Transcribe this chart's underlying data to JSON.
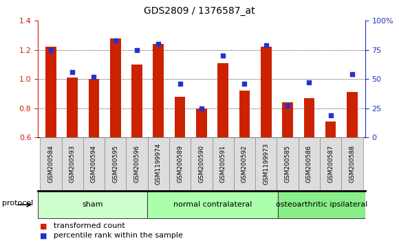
{
  "title": "GDS2809 / 1376587_at",
  "categories": [
    "GSM200584",
    "GSM200593",
    "GSM200594",
    "GSM200595",
    "GSM200596",
    "GSM1199974",
    "GSM200589",
    "GSM200590",
    "GSM200591",
    "GSM200592",
    "GSM1199973",
    "GSM200585",
    "GSM200586",
    "GSM200587",
    "GSM200588"
  ],
  "red_values": [
    1.22,
    1.01,
    1.0,
    1.28,
    1.1,
    1.24,
    0.88,
    0.8,
    1.11,
    0.92,
    1.22,
    0.84,
    0.87,
    0.71,
    0.91
  ],
  "blue_values": [
    75,
    56,
    52,
    83,
    75,
    80,
    46,
    25,
    70,
    46,
    79,
    27,
    47,
    19,
    54
  ],
  "ylim_left": [
    0.6,
    1.4
  ],
  "ylim_right": [
    0,
    100
  ],
  "yticks_left": [
    0.6,
    0.8,
    1.0,
    1.2,
    1.4
  ],
  "yticks_right": [
    0,
    25,
    50,
    75,
    100
  ],
  "ytick_labels_right": [
    "0",
    "25",
    "50",
    "75",
    "100%"
  ],
  "groups": [
    {
      "label": "sham",
      "start": 0,
      "end": 5,
      "color": "#ccffcc"
    },
    {
      "label": "normal contralateral",
      "start": 5,
      "end": 11,
      "color": "#aaffaa"
    },
    {
      "label": "osteoarthritic ipsilateral",
      "start": 11,
      "end": 15,
      "color": "#88ee88"
    }
  ],
  "protocol_label": "protocol",
  "red_color": "#cc2200",
  "blue_color": "#2233cc",
  "bar_width": 0.5,
  "grid_color": "#000000",
  "bg_color": "#ffffff",
  "plot_bg": "#ffffff",
  "left_axis_color": "#cc2200",
  "right_axis_color": "#2233bb",
  "legend_red": "transformed count",
  "legend_blue": "percentile rank within the sample",
  "baseline": 0.6,
  "xtick_bg": "#dddddd",
  "separator_color": "#000000",
  "group_border_color": "#444444"
}
